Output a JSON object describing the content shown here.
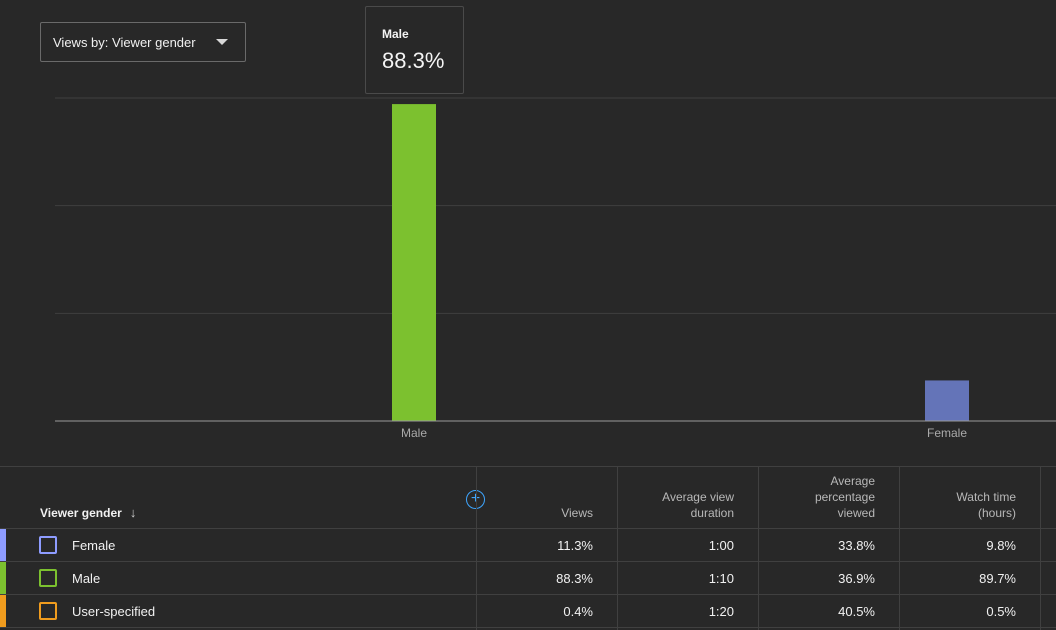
{
  "dropdown": {
    "label": "Views by: Viewer gender"
  },
  "tooltip": {
    "label": "Male",
    "value": "88.3%"
  },
  "chart_data": {
    "type": "bar",
    "categories": [
      "Male",
      "Female"
    ],
    "values": [
      88.3,
      11.3
    ],
    "colors": [
      "#7cc12f",
      "#6474b8"
    ],
    "ylim": [
      0,
      90
    ],
    "grid": true
  },
  "table": {
    "headers": {
      "dimension": "Viewer gender",
      "views": "Views",
      "avg_view_duration": "Average view duration",
      "avg_pct_viewed": "Average percentage viewed",
      "watch_time": "Watch time (hours)"
    },
    "rows": [
      {
        "name": "Female",
        "color": "#8e9cff",
        "views": "11.3%",
        "duration": "1:00",
        "pct": "33.8%",
        "watch": "9.8%"
      },
      {
        "name": "Male",
        "color": "#7cc12f",
        "views": "88.3%",
        "duration": "1:10",
        "pct": "36.9%",
        "watch": "89.7%"
      },
      {
        "name": "User-specified",
        "color": "#f09c1e",
        "views": "0.4%",
        "duration": "1:20",
        "pct": "40.5%",
        "watch": "0.5%"
      }
    ]
  }
}
